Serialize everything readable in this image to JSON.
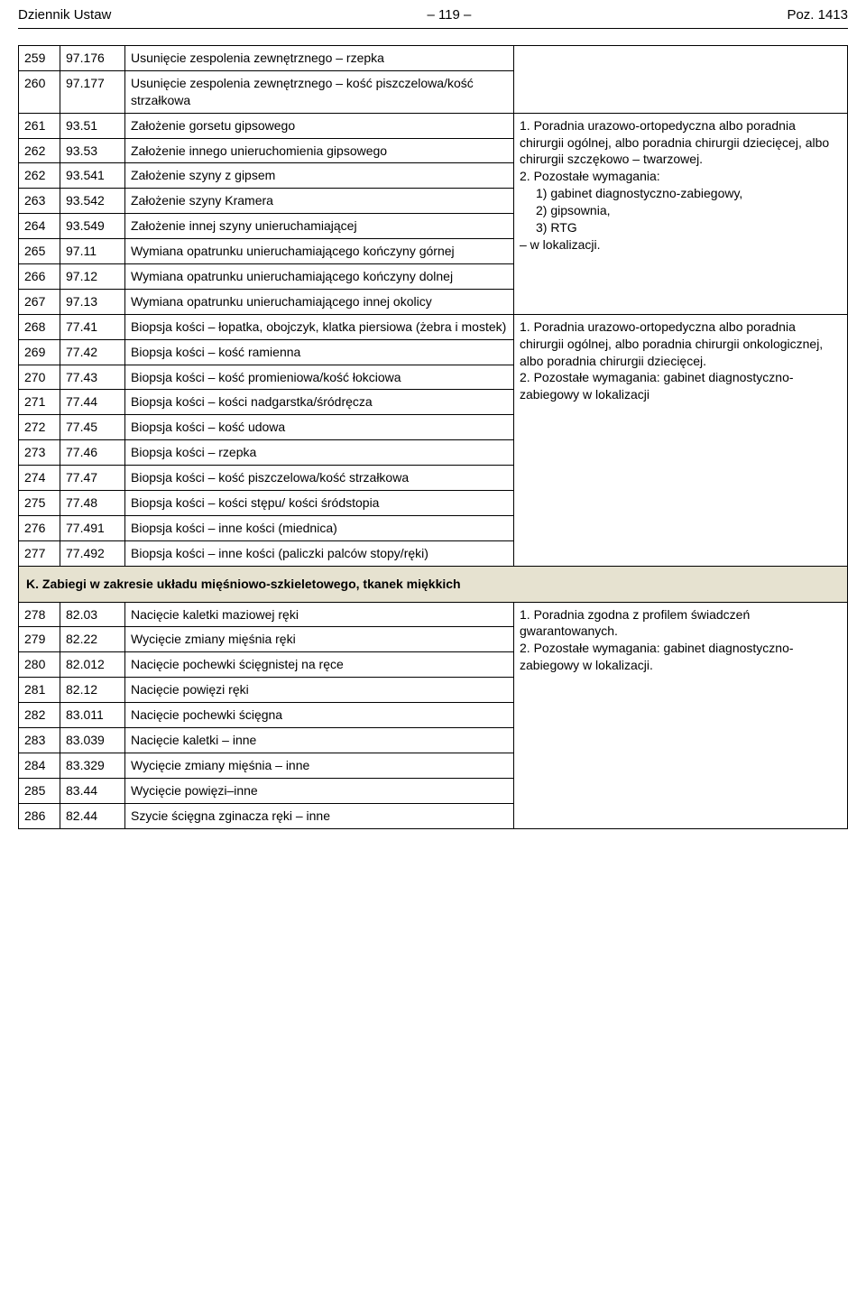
{
  "header": {
    "left": "Dziennik Ustaw",
    "center": "– 119 –",
    "right": "Poz. 1413"
  },
  "rows_top": [
    {
      "n": "259",
      "code": "97.176",
      "desc": "Usunięcie zespolenia zewnętrznego – rzepka"
    },
    {
      "n": "260",
      "code": "97.177",
      "desc": "Usunięcie zespolenia zewnętrznego – kość piszczelowa/kość strzałkowa"
    }
  ],
  "req1": {
    "line1": "1. Poradnia urazowo-ortopedyczna albo poradnia chirurgii ogólnej, albo poradnia chirurgii dziecięcej, albo chirurgii szczękowo – twarzowej.",
    "line2": "2. Pozostałe wymagania:",
    "sub1": "1) gabinet diagnostyczno-zabiegowy,",
    "sub2": "2) gipsownia,",
    "sub3": "3) RTG",
    "tail": "– w lokalizacji."
  },
  "rows_block1": [
    {
      "n": "261",
      "code": "93.51",
      "desc": "Założenie gorsetu gipsowego"
    },
    {
      "n": "262",
      "code": "93.53",
      "desc": "Założenie innego unieruchomienia gipsowego"
    },
    {
      "n": "262",
      "code": "93.541",
      "desc": "Założenie szyny z gipsem"
    },
    {
      "n": "263",
      "code": "93.542",
      "desc": "Założenie szyny Kramera"
    },
    {
      "n": "264",
      "code": "93.549",
      "desc": "Założenie innej szyny unieruchamiającej"
    },
    {
      "n": "265",
      "code": "97.11",
      "desc": "Wymiana opatrunku unieruchamiającego kończyny górnej"
    },
    {
      "n": "266",
      "code": "97.12",
      "desc": "Wymiana opatrunku unieruchamiającego kończyny dolnej"
    },
    {
      "n": "267",
      "code": "97.13",
      "desc": "Wymiana opatrunku unieruchamiającego innej okolicy"
    }
  ],
  "req2": {
    "line1": "1. Poradnia urazowo-ortopedyczna albo poradnia chirurgii ogólnej, albo poradnia chirurgii onkologicznej, albo poradnia chirurgii dziecięcej.",
    "line2": "2. Pozostałe wymagania: gabinet diagnostyczno-zabiegowy w lokalizacji"
  },
  "rows_block2": [
    {
      "n": "268",
      "code": "77.41",
      "desc": "Biopsja kości – łopatka, obojczyk, klatka piersiowa (żebra i mostek)"
    },
    {
      "n": "269",
      "code": "77.42",
      "desc": "Biopsja kości – kość ramienna"
    },
    {
      "n": "270",
      "code": "77.43",
      "desc": "Biopsja kości – kość promieniowa/kość łokciowa"
    },
    {
      "n": "271",
      "code": "77.44",
      "desc": "Biopsja kości – kości nadgarstka/śródręcza"
    },
    {
      "n": "272",
      "code": "77.45",
      "desc": "Biopsja kości – kość udowa"
    },
    {
      "n": "273",
      "code": "77.46",
      "desc": "Biopsja kości – rzepka"
    },
    {
      "n": "274",
      "code": "77.47",
      "desc": "Biopsja kości – kość piszczelowa/kość strzałkowa"
    },
    {
      "n": "275",
      "code": "77.48",
      "desc": "Biopsja kości – kości stępu/ kości śródstopia"
    },
    {
      "n": "276",
      "code": "77.491",
      "desc": "Biopsja kości – inne kości (miednica)"
    },
    {
      "n": "277",
      "code": "77.492",
      "desc": "Biopsja kości – inne kości (paliczki palców stopy/ręki)"
    }
  ],
  "section_k": "K. Zabiegi w zakresie układu mięśniowo-szkieletowego, tkanek miękkich",
  "req3": {
    "line1": "1. Poradnia zgodna z profilem świadczeń gwarantowanych.",
    "line2": "2. Pozostałe wymagania: gabinet diagnostyczno-zabiegowy w lokalizacji."
  },
  "rows_block3": [
    {
      "n": "278",
      "code": "82.03",
      "desc": "Nacięcie kaletki maziowej ręki"
    },
    {
      "n": "279",
      "code": "82.22",
      "desc": "Wycięcie zmiany mięśnia ręki"
    },
    {
      "n": "280",
      "code": "82.012",
      "desc": "Nacięcie pochewki ścięgnistej na ręce"
    },
    {
      "n": "281",
      "code": "82.12",
      "desc": "Nacięcie powięzi ręki"
    },
    {
      "n": "282",
      "code": "83.011",
      "desc": "Nacięcie pochewki ścięgna"
    },
    {
      "n": "283",
      "code": "83.039",
      "desc": "Nacięcie kaletki – inne"
    },
    {
      "n": "284",
      "code": "83.329",
      "desc": "Wycięcie zmiany mięśnia – inne"
    },
    {
      "n": "285",
      "code": "83.44",
      "desc": "Wycięcie powięzi–inne"
    },
    {
      "n": "286",
      "code": "82.44",
      "desc": "Szycie ścięgna zginacza ręki – inne"
    }
  ]
}
